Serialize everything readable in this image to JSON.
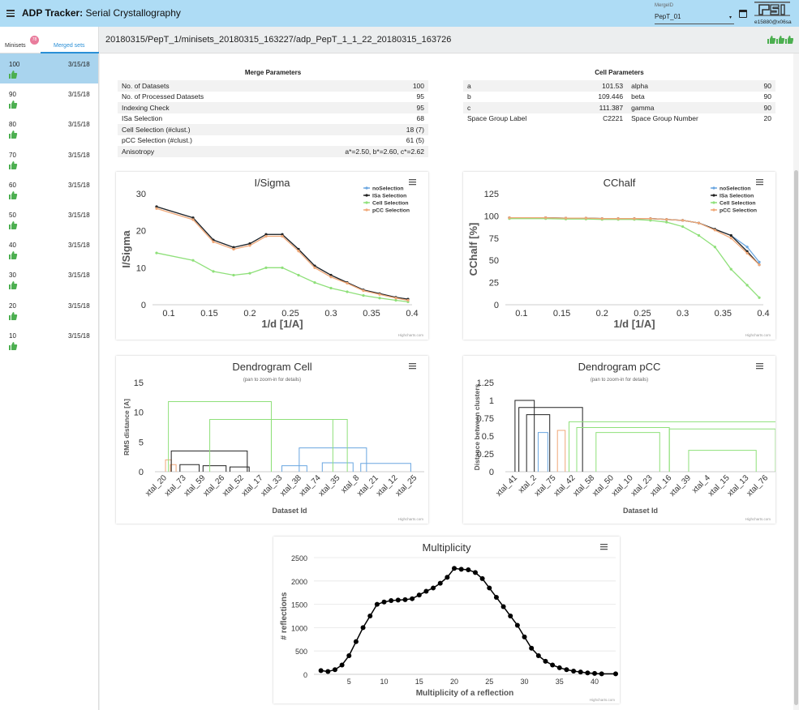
{
  "header": {
    "title_bold": "ADP Tracker:",
    "title_rest": " Serial Crystallography",
    "merge_label": "MergeID",
    "merge_value": "PepT_01",
    "user_id": "e15880@x06sa"
  },
  "sidebar": {
    "tab_minisets": "Minisets",
    "tab_merged": "Merged sets",
    "badge": "78",
    "rows": [
      {
        "num": "100",
        "date": "3/15/18"
      },
      {
        "num": "90",
        "date": "3/15/18"
      },
      {
        "num": "80",
        "date": "3/15/18"
      },
      {
        "num": "70",
        "date": "3/15/18"
      },
      {
        "num": "60",
        "date": "3/15/18"
      },
      {
        "num": "50",
        "date": "3/15/18"
      },
      {
        "num": "40",
        "date": "3/15/18"
      },
      {
        "num": "30",
        "date": "3/15/18"
      },
      {
        "num": "20",
        "date": "3/15/18"
      },
      {
        "num": "10",
        "date": "3/15/18"
      }
    ]
  },
  "path": "20180315/PepT_1/minisets_20180315_163227/adp_PepT_1_1_22_20180315_163726",
  "merge_params": {
    "title": "Merge Parameters",
    "rows": [
      [
        "No. of Datasets",
        "100"
      ],
      [
        "No. of Processed Datasets",
        "95"
      ],
      [
        "Indexing Check",
        "95"
      ],
      [
        "ISa Selection",
        "68"
      ],
      [
        "Cell Selection (#clust.)",
        "18 (7)"
      ],
      [
        "pCC Selection (#clust.)",
        "61 (5)"
      ],
      [
        "Anisotropy",
        "a*=2.50, b*=2.60, c*=2.62"
      ]
    ]
  },
  "cell_params": {
    "title": "Cell Parameters",
    "rows": [
      [
        "a",
        "101.53",
        "alpha",
        "90"
      ],
      [
        "b",
        "109.446",
        "beta",
        "90"
      ],
      [
        "c",
        "111.387",
        "gamma",
        "90"
      ],
      [
        "Space Group Label",
        "C2221",
        "Space Group Number",
        "20"
      ]
    ]
  },
  "colors": {
    "noSelection": "#6aa6e0",
    "isa": "#222222",
    "cell": "#8fe07a",
    "pcc": "#f0a878",
    "accent": "#2a8fd6",
    "thumb": "#4caf50"
  },
  "credits": "Highcharts.com",
  "chart_data": [
    {
      "type": "line",
      "title": "I/Sigma",
      "xlabel": "1/d [1/A]",
      "ylabel": "I/Sigma",
      "xlim": [
        0.08,
        0.4
      ],
      "ylim": [
        0,
        30
      ],
      "xticks": [
        0.1,
        0.15,
        0.2,
        0.25,
        0.3,
        0.35,
        0.4
      ],
      "yticks": [
        0,
        10,
        20,
        30
      ],
      "legend": "top-right",
      "x": [
        0.085,
        0.13,
        0.155,
        0.18,
        0.2,
        0.22,
        0.24,
        0.26,
        0.28,
        0.3,
        0.32,
        0.34,
        0.36,
        0.38,
        0.395
      ],
      "series": [
        {
          "name": "noSelection",
          "values": [
            26.5,
            23.5,
            17.5,
            15.5,
            16.5,
            19,
            19,
            15,
            10.5,
            8,
            6,
            4,
            3,
            2,
            1.5
          ]
        },
        {
          "name": "ISa Selection",
          "values": [
            26.5,
            23.5,
            17.5,
            15.5,
            16.5,
            19,
            19,
            15,
            10.5,
            8,
            6,
            4,
            3,
            2,
            1.5
          ]
        },
        {
          "name": "Cell Selection",
          "values": [
            14,
            12,
            9,
            8,
            8.5,
            10,
            10,
            8,
            6,
            4.5,
            3.5,
            2.5,
            1.8,
            1.2,
            0.8
          ]
        },
        {
          "name": "pCC Selection",
          "values": [
            26,
            23,
            17,
            15,
            16,
            18.5,
            18.5,
            14.5,
            10,
            7.5,
            5.8,
            3.8,
            2.8,
            1.8,
            1.2
          ]
        }
      ]
    },
    {
      "type": "line",
      "title": "CChalf",
      "xlabel": "1/d [1/A]",
      "ylabel": "CChalf [%]",
      "xlim": [
        0.08,
        0.4
      ],
      "ylim": [
        0,
        125
      ],
      "xticks": [
        0.1,
        0.15,
        0.2,
        0.25,
        0.3,
        0.35,
        0.4
      ],
      "yticks": [
        0,
        25,
        50,
        75,
        100,
        125
      ],
      "legend": "top-right",
      "x": [
        0.085,
        0.13,
        0.155,
        0.18,
        0.2,
        0.22,
        0.24,
        0.26,
        0.28,
        0.3,
        0.32,
        0.34,
        0.36,
        0.38,
        0.395
      ],
      "series": [
        {
          "name": "noSelection",
          "values": [
            98,
            98,
            97.5,
            97.5,
            97,
            97,
            97,
            97,
            96,
            95,
            92,
            85,
            78,
            65,
            48
          ]
        },
        {
          "name": "ISa Selection",
          "values": [
            98,
            98,
            97.5,
            97.5,
            97,
            97,
            97,
            97,
            96,
            95,
            92,
            85,
            78,
            60,
            45
          ]
        },
        {
          "name": "Cell Selection",
          "values": [
            97,
            97,
            96.5,
            96.5,
            96,
            96,
            96,
            95,
            93,
            88,
            78,
            65,
            40,
            22,
            8
          ]
        },
        {
          "name": "pCC Selection",
          "values": [
            98,
            98,
            97.5,
            97.5,
            97,
            97,
            97,
            97,
            96,
            95,
            92,
            84,
            75,
            58,
            45
          ]
        }
      ]
    },
    {
      "type": "dendrogram",
      "title": "Dendrogram Cell",
      "subtitle": "(pan to zoom-in for details)",
      "xlabel": "Dataset Id",
      "ylabel": "RMS distance [A]",
      "ylim": [
        0,
        15
      ],
      "yticks": [
        0,
        5,
        10,
        15
      ],
      "categories": [
        "xtal_20",
        "xtal_73",
        "xtal_59",
        "xtal_26",
        "xtal_52",
        "xtal_17",
        "xtal_33",
        "xtal_38",
        "xtal_74",
        "xtal_35",
        "xtal_8",
        "xtal_21",
        "xtal_12",
        "xtal_25"
      ],
      "merges": [
        {
          "x1": 0.05,
          "x2": 0.35,
          "h": 2.0,
          "color": "orange"
        },
        {
          "x1": 0.3,
          "x2": 0.6,
          "h": 1.2,
          "color": "orange"
        },
        {
          "x1": 0.35,
          "x2": 4.3,
          "h": 3.5,
          "color": "black"
        },
        {
          "x1": 0.8,
          "x2": 1.8,
          "h": 1.2,
          "color": "black"
        },
        {
          "x1": 2.0,
          "x2": 3.2,
          "h": 1.0,
          "color": "black"
        },
        {
          "x1": 3.4,
          "x2": 4.4,
          "h": 0.8,
          "color": "black"
        },
        {
          "x1": 7.0,
          "x2": 10.5,
          "h": 4.0,
          "color": "blue"
        },
        {
          "x1": 6.1,
          "x2": 7.4,
          "h": 1.0,
          "color": "blue"
        },
        {
          "x1": 8.2,
          "x2": 9.8,
          "h": 1.5,
          "color": "blue"
        },
        {
          "x1": 10.2,
          "x2": 12.8,
          "h": 1.4,
          "color": "blue"
        },
        {
          "x1": 2.35,
          "x2": 8.75,
          "h": 8.8,
          "color": "green"
        },
        {
          "x1": 0.2,
          "x2": 5.55,
          "h": 11.8,
          "color": "green"
        },
        {
          "x1": 5.55,
          "x2": 9.5,
          "h": 8.8,
          "color": "green"
        }
      ]
    },
    {
      "type": "dendrogram",
      "title": "Dendrogram pCC",
      "subtitle": "(pan to zoom-in for details)",
      "xlabel": "Dataset Id",
      "ylabel": "Distance between clusters",
      "ylim": [
        0,
        1.25
      ],
      "yticks": [
        0,
        0.25,
        0.5,
        0.75,
        1,
        1.25
      ],
      "categories": [
        "xtal_41",
        "xtal_2",
        "xtal_75",
        "xtal_42",
        "xtal_58",
        "xtal_50",
        "xtal_10",
        "xtal_23",
        "xtal_16",
        "xtal_39",
        "xtal_4",
        "xtal_15",
        "xtal_13",
        "xtal_76"
      ],
      "merges": [
        {
          "x1": 0.0,
          "x2": 1.0,
          "h": 1.0,
          "color": "black"
        },
        {
          "x1": 0.2,
          "x2": 3.5,
          "h": 0.9,
          "color": "black"
        },
        {
          "x1": 0.6,
          "x2": 1.8,
          "h": 0.8,
          "color": "black"
        },
        {
          "x1": 1.2,
          "x2": 1.7,
          "h": 0.55,
          "color": "blue"
        },
        {
          "x1": 2.2,
          "x2": 2.6,
          "h": 0.58,
          "color": "orange"
        },
        {
          "x1": 2.8,
          "x2": 13.8,
          "h": 0.7,
          "color": "green"
        },
        {
          "x1": 3.2,
          "x2": 8.0,
          "h": 0.62,
          "color": "green"
        },
        {
          "x1": 8.0,
          "x2": 13.5,
          "h": 0.6,
          "color": "green"
        },
        {
          "x1": 4.2,
          "x2": 7.5,
          "h": 0.55,
          "color": "green"
        },
        {
          "x1": 9.0,
          "x2": 12.5,
          "h": 0.3,
          "color": "green"
        }
      ]
    },
    {
      "type": "line",
      "title": "Multiplicity",
      "xlabel": "Multiplicity of a reflection",
      "ylabel": "# reflections",
      "xlim": [
        0,
        43
      ],
      "ylim": [
        0,
        2500
      ],
      "xticks": [
        5,
        10,
        15,
        20,
        25,
        30,
        35,
        40
      ],
      "yticks": [
        0,
        500,
        1000,
        1500,
        2000,
        2500
      ],
      "x": [
        1,
        2,
        3,
        4,
        5,
        6,
        7,
        8,
        9,
        10,
        11,
        12,
        13,
        14,
        15,
        16,
        17,
        18,
        19,
        20,
        21,
        22,
        23,
        24,
        25,
        26,
        27,
        28,
        29,
        30,
        31,
        32,
        33,
        34,
        35,
        36,
        37,
        38,
        39,
        40,
        41,
        43
      ],
      "series": [
        {
          "name": "",
          "values": [
            80,
            60,
            100,
            200,
            400,
            700,
            1000,
            1250,
            1500,
            1550,
            1580,
            1590,
            1600,
            1620,
            1700,
            1780,
            1850,
            1950,
            2080,
            2270,
            2250,
            2240,
            2180,
            2050,
            1850,
            1650,
            1450,
            1250,
            1050,
            800,
            560,
            400,
            280,
            200,
            140,
            100,
            70,
            50,
            30,
            20,
            10,
            10
          ]
        }
      ]
    }
  ]
}
